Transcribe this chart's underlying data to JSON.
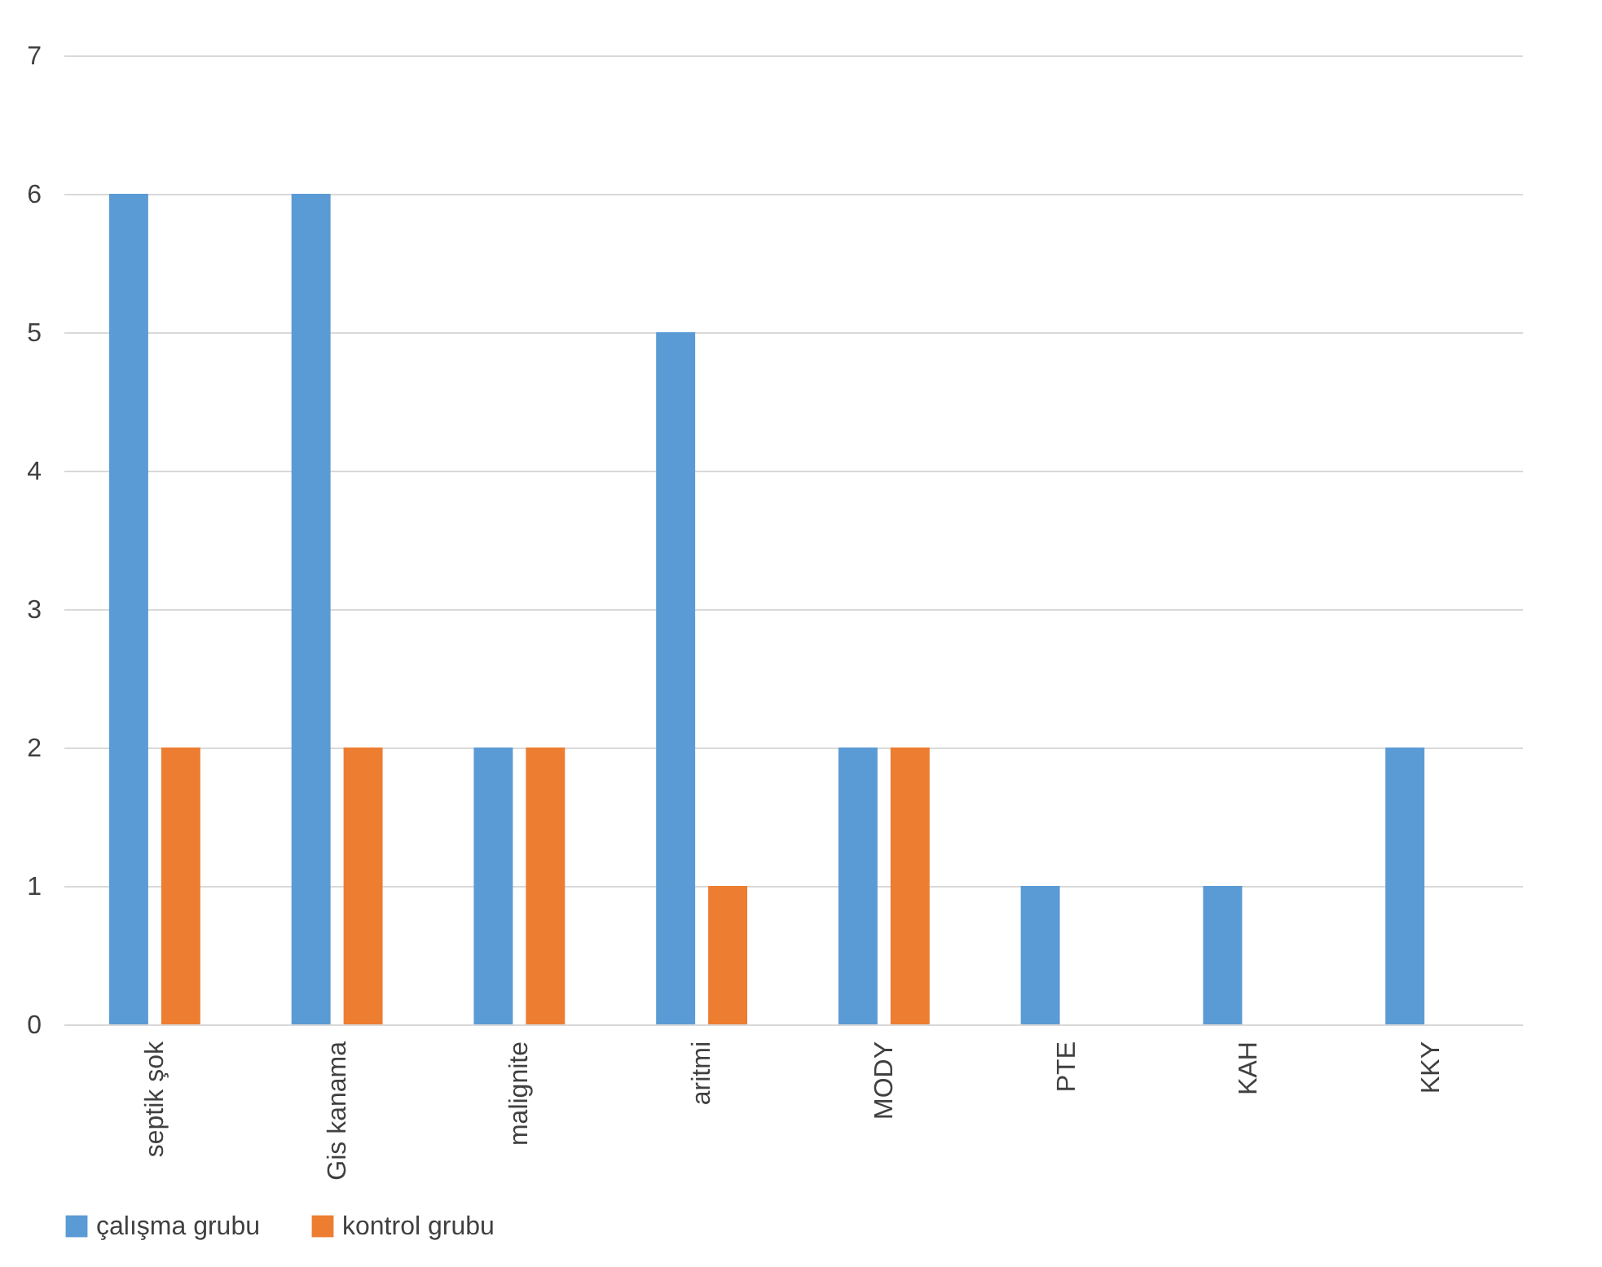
{
  "chart_data": {
    "type": "bar",
    "categories": [
      "septik şok",
      "Gis kanama",
      "malignite",
      "aritmi",
      "MODY",
      "PTE",
      "KAH",
      "KKY"
    ],
    "series": [
      {
        "name": "çalışma grubu",
        "color": "#5b9bd5",
        "values": [
          6,
          6,
          2,
          5,
          2,
          1,
          1,
          2
        ]
      },
      {
        "name": "kontrol grubu",
        "color": "#ed7d31",
        "values": [
          2,
          2,
          2,
          1,
          2,
          0,
          0,
          0
        ]
      }
    ],
    "ylim": [
      0,
      7
    ],
    "yticks": [
      0,
      1,
      2,
      3,
      4,
      5,
      6,
      7
    ],
    "grid": "y",
    "legend": "bottom"
  }
}
